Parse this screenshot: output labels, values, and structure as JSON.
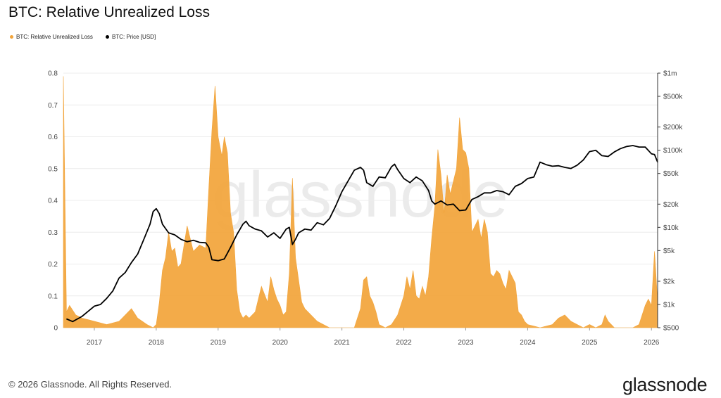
{
  "chart_data": {
    "type": "area",
    "title": "BTC: Relative Unrealized Loss",
    "legend": [
      "BTC: Relative Unrealized Loss",
      "BTC: Price [USD]"
    ],
    "legend_placement": "top-left",
    "grid": true,
    "x_ticks": [
      "2017",
      "2018",
      "2019",
      "2020",
      "2021",
      "2022",
      "2023",
      "2024",
      "2025",
      "2026"
    ],
    "x_range": [
      2016.5,
      2026.1
    ],
    "left_axis": {
      "ylim": [
        0,
        0.8
      ],
      "ticks": [
        "0",
        "0.1",
        "0.2",
        "0.3",
        "0.4",
        "0.5",
        "0.6",
        "0.7",
        "0.8"
      ]
    },
    "right_axis": {
      "scale": "log",
      "ylim": [
        500,
        1000000
      ],
      "ticks": [
        "$500",
        "$1k",
        "$2k",
        "$5k",
        "$10k",
        "$20k",
        "$50k",
        "$100k",
        "$200k",
        "$500k",
        "$1m"
      ],
      "tick_values": [
        500,
        1000,
        2000,
        5000,
        10000,
        20000,
        50000,
        100000,
        200000,
        500000,
        1000000
      ]
    },
    "series": [
      {
        "name": "BTC: Relative Unrealized Loss",
        "color": "#f2a43a",
        "axis": "left",
        "x": [
          2016.5,
          2016.55,
          2016.6,
          2016.7,
          2016.8,
          2017.0,
          2017.2,
          2017.4,
          2017.5,
          2017.6,
          2017.7,
          2017.85,
          2017.95,
          2018.0,
          2018.05,
          2018.1,
          2018.15,
          2018.2,
          2018.25,
          2018.3,
          2018.35,
          2018.4,
          2018.5,
          2018.6,
          2018.7,
          2018.8,
          2018.85,
          2018.9,
          2018.95,
          2019.0,
          2019.03,
          2019.06,
          2019.1,
          2019.15,
          2019.2,
          2019.25,
          2019.3,
          2019.35,
          2019.4,
          2019.45,
          2019.5,
          2019.6,
          2019.7,
          2019.8,
          2019.85,
          2019.9,
          2019.95,
          2020.0,
          2020.05,
          2020.1,
          2020.15,
          2020.2,
          2020.25,
          2020.3,
          2020.35,
          2020.4,
          2020.5,
          2020.6,
          2020.7,
          2020.8,
          2021.0,
          2021.2,
          2021.3,
          2021.35,
          2021.4,
          2021.45,
          2021.5,
          2021.55,
          2021.6,
          2021.7,
          2021.8,
          2021.9,
          2022.0,
          2022.05,
          2022.1,
          2022.15,
          2022.2,
          2022.25,
          2022.3,
          2022.35,
          2022.4,
          2022.45,
          2022.5,
          2022.55,
          2022.6,
          2022.65,
          2022.7,
          2022.75,
          2022.8,
          2022.85,
          2022.9,
          2022.95,
          2023.0,
          2023.05,
          2023.1,
          2023.15,
          2023.2,
          2023.25,
          2023.3,
          2023.35,
          2023.4,
          2023.45,
          2023.5,
          2023.55,
          2023.6,
          2023.65,
          2023.7,
          2023.75,
          2023.8,
          2023.85,
          2023.9,
          2023.95,
          2024.0,
          2024.2,
          2024.4,
          2024.5,
          2024.6,
          2024.7,
          2024.8,
          2024.9,
          2025.0,
          2025.1,
          2025.2,
          2025.25,
          2025.3,
          2025.4,
          2025.5,
          2025.6,
          2025.7,
          2025.8,
          2025.85,
          2025.9,
          2025.95,
          2026.0,
          2026.05,
          2026.1
        ],
        "values": [
          0.79,
          0.05,
          0.07,
          0.04,
          0.03,
          0.02,
          0.01,
          0.02,
          0.04,
          0.06,
          0.03,
          0.01,
          0.0,
          0.01,
          0.08,
          0.18,
          0.22,
          0.3,
          0.24,
          0.25,
          0.19,
          0.2,
          0.32,
          0.24,
          0.26,
          0.25,
          0.44,
          0.62,
          0.76,
          0.6,
          0.57,
          0.54,
          0.6,
          0.55,
          0.36,
          0.3,
          0.12,
          0.05,
          0.03,
          0.04,
          0.03,
          0.05,
          0.13,
          0.08,
          0.16,
          0.12,
          0.09,
          0.07,
          0.04,
          0.05,
          0.17,
          0.47,
          0.22,
          0.15,
          0.08,
          0.06,
          0.04,
          0.02,
          0.01,
          0.0,
          0.0,
          0.0,
          0.06,
          0.15,
          0.16,
          0.1,
          0.08,
          0.05,
          0.01,
          0.0,
          0.01,
          0.04,
          0.1,
          0.16,
          0.12,
          0.18,
          0.1,
          0.09,
          0.13,
          0.1,
          0.16,
          0.28,
          0.38,
          0.56,
          0.48,
          0.36,
          0.48,
          0.42,
          0.46,
          0.5,
          0.66,
          0.56,
          0.55,
          0.5,
          0.3,
          0.32,
          0.34,
          0.28,
          0.34,
          0.3,
          0.17,
          0.16,
          0.18,
          0.17,
          0.14,
          0.12,
          0.18,
          0.16,
          0.14,
          0.05,
          0.04,
          0.02,
          0.01,
          0.0,
          0.01,
          0.03,
          0.04,
          0.02,
          0.01,
          0.0,
          0.01,
          0.0,
          0.01,
          0.04,
          0.02,
          0.0,
          0.0,
          0.0,
          0.0,
          0.01,
          0.04,
          0.07,
          0.09,
          0.07,
          0.24,
          0.08
        ]
      },
      {
        "name": "BTC: Price [USD]",
        "color": "#000000",
        "axis": "right",
        "x": [
          2016.55,
          2016.65,
          2016.8,
          2017.0,
          2017.1,
          2017.2,
          2017.3,
          2017.4,
          2017.5,
          2017.6,
          2017.7,
          2017.8,
          2017.9,
          2017.95,
          2018.0,
          2018.05,
          2018.1,
          2018.2,
          2018.3,
          2018.4,
          2018.5,
          2018.6,
          2018.7,
          2018.8,
          2018.85,
          2018.9,
          2019.0,
          2019.1,
          2019.2,
          2019.3,
          2019.4,
          2019.45,
          2019.5,
          2019.6,
          2019.7,
          2019.8,
          2019.9,
          2020.0,
          2020.1,
          2020.15,
          2020.2,
          2020.25,
          2020.3,
          2020.4,
          2020.5,
          2020.6,
          2020.7,
          2020.8,
          2020.9,
          2021.0,
          2021.1,
          2021.2,
          2021.3,
          2021.35,
          2021.4,
          2021.5,
          2021.6,
          2021.7,
          2021.8,
          2021.85,
          2021.9,
          2022.0,
          2022.1,
          2022.2,
          2022.3,
          2022.4,
          2022.45,
          2022.5,
          2022.6,
          2022.7,
          2022.8,
          2022.9,
          2023.0,
          2023.1,
          2023.2,
          2023.3,
          2023.4,
          2023.5,
          2023.6,
          2023.7,
          2023.8,
          2023.9,
          2024.0,
          2024.1,
          2024.2,
          2024.3,
          2024.4,
          2024.5,
          2024.6,
          2024.7,
          2024.8,
          2024.9,
          2025.0,
          2025.1,
          2025.2,
          2025.3,
          2025.4,
          2025.5,
          2025.6,
          2025.7,
          2025.8,
          2025.9,
          2026.0,
          2026.05,
          2026.1
        ],
        "values": [
          650,
          600,
          700,
          950,
          1000,
          1200,
          1500,
          2200,
          2600,
          3500,
          4500,
          7000,
          11000,
          16000,
          17500,
          15000,
          11000,
          8500,
          8000,
          7000,
          6500,
          6800,
          6400,
          6300,
          5500,
          3800,
          3700,
          3900,
          5500,
          8000,
          11000,
          12000,
          10500,
          9500,
          9000,
          7500,
          8500,
          7200,
          9500,
          10000,
          6000,
          7000,
          8500,
          9500,
          9200,
          11500,
          10800,
          13000,
          19000,
          29000,
          40000,
          55000,
          60000,
          55000,
          38000,
          34000,
          45000,
          44000,
          61000,
          66000,
          56000,
          43000,
          38000,
          45000,
          40000,
          30000,
          22000,
          20000,
          22000,
          19500,
          20000,
          16500,
          16800,
          23000,
          25000,
          28000,
          28000,
          30000,
          29000,
          26500,
          34000,
          37000,
          43000,
          45000,
          70000,
          65000,
          62000,
          63000,
          60000,
          58000,
          64000,
          75000,
          96000,
          100000,
          85000,
          83000,
          95000,
          105000,
          112000,
          115000,
          110000,
          110000,
          90000,
          88000,
          70000
        ]
      }
    ]
  },
  "footer": {
    "copyright": "© 2026 Glassnode. All Rights Reserved.",
    "brand": "glassnode",
    "watermark": "glassnode"
  }
}
